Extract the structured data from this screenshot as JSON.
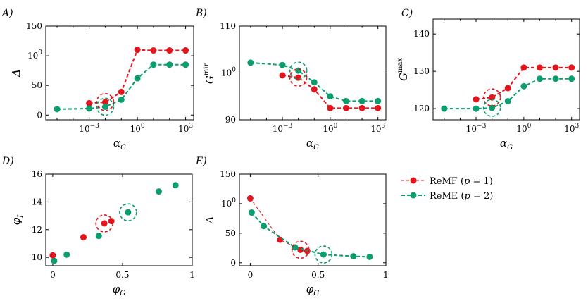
{
  "colors": {
    "remf": "#e3141b",
    "reme": "#0c9d6e"
  },
  "legend": [
    {
      "label": "ReMF (p = 1)",
      "color": "#e3141b",
      "style": "thin-dash"
    },
    {
      "label": "ReME (p = 2)",
      "color": "#0c9d6e",
      "style": "thick-dash"
    }
  ],
  "chart_data": [
    {
      "panel": "A)",
      "type": "line",
      "xlabel": "αG",
      "ylabel": "Δ",
      "xscale": "log",
      "xlim": [
        -5.7,
        3.5
      ],
      "ylim": [
        -8,
        150
      ],
      "xticks": [
        {
          "v": -3,
          "label": "10⁻³"
        },
        {
          "v": 0,
          "label": "10⁰"
        },
        {
          "v": 3,
          "label": "10³"
        }
      ],
      "yticks": [
        {
          "v": 0,
          "label": "0"
        },
        {
          "v": 50,
          "label": "50"
        },
        {
          "v": 100,
          "label": "100"
        },
        {
          "v": 150,
          "label": "150"
        }
      ],
      "series": [
        {
          "key": "remf",
          "x": [
            -3,
            -2,
            -1,
            0,
            1,
            2,
            3
          ],
          "y": [
            20,
            22,
            39,
            110,
            109,
            109,
            109
          ]
        },
        {
          "key": "reme",
          "x": [
            -5,
            -3,
            -2,
            -1,
            0,
            1,
            2,
            3
          ],
          "y": [
            10,
            11,
            14,
            26,
            62,
            85,
            85,
            85
          ]
        }
      ],
      "highlights": [
        {
          "key": "remf",
          "x": -2,
          "y": 22
        },
        {
          "key": "reme",
          "x": -2,
          "y": 14
        }
      ]
    },
    {
      "panel": "B)",
      "type": "line",
      "xlabel": "αG",
      "ylabel": "Gmin",
      "xscale": "log",
      "xlim": [
        -5.7,
        3.5
      ],
      "ylim": [
        90,
        110
      ],
      "xticks": [
        {
          "v": -3,
          "label": "10⁻³"
        },
        {
          "v": 0,
          "label": "10⁰"
        },
        {
          "v": 3,
          "label": "10³"
        }
      ],
      "yticks": [
        {
          "v": 90,
          "label": "90"
        },
        {
          "v": 100,
          "label": "100"
        },
        {
          "v": 110,
          "label": "110"
        }
      ],
      "series": [
        {
          "key": "remf",
          "x": [
            -3,
            -2,
            -1,
            0,
            1,
            2,
            3
          ],
          "y": [
            99.5,
            99,
            96.5,
            92.5,
            92.5,
            92.5,
            92.5
          ]
        },
        {
          "key": "reme",
          "x": [
            -5,
            -3,
            -2,
            -1,
            0,
            1,
            2,
            3
          ],
          "y": [
            102.2,
            101.7,
            100.5,
            98,
            95,
            94,
            94,
            94
          ]
        }
      ],
      "highlights": [
        {
          "key": "remf",
          "x": -2,
          "y": 99
        },
        {
          "key": "reme",
          "x": -2,
          "y": 100.5
        }
      ]
    },
    {
      "panel": "C)",
      "type": "line",
      "xlabel": "αG",
      "ylabel": "Gmax",
      "xscale": "log",
      "xlim": [
        -5.7,
        3.5
      ],
      "ylim": [
        117,
        144
      ],
      "xticks": [
        {
          "v": -3,
          "label": "10⁻³"
        },
        {
          "v": 0,
          "label": "10⁰"
        },
        {
          "v": 3,
          "label": "10³"
        }
      ],
      "yticks": [
        {
          "v": 120,
          "label": "120"
        },
        {
          "v": 130,
          "label": "130"
        },
        {
          "v": 140,
          "label": "140"
        }
      ],
      "series": [
        {
          "key": "remf",
          "x": [
            -3,
            -2,
            -1,
            0,
            1,
            2,
            3
          ],
          "y": [
            122.5,
            123,
            125.5,
            131,
            131,
            131,
            131
          ]
        },
        {
          "key": "reme",
          "x": [
            -5,
            -3,
            -2,
            -1,
            0,
            1,
            2,
            3
          ],
          "y": [
            120,
            120,
            120.2,
            122,
            126,
            128,
            128,
            128
          ]
        }
      ],
      "highlights": [
        {
          "key": "remf",
          "x": -2,
          "y": 123
        },
        {
          "key": "reme",
          "x": -2,
          "y": 120.2
        }
      ]
    },
    {
      "panel": "D)",
      "type": "scatter",
      "xlabel": "φG",
      "ylabel": "φI",
      "xscale": "linear",
      "xlim": [
        -0.05,
        1
      ],
      "ylim": [
        9.4,
        16
      ],
      "xticks": [
        {
          "v": 0,
          "label": "0"
        },
        {
          "v": 0.5,
          "label": "0.5"
        },
        {
          "v": 1,
          "label": "1"
        }
      ],
      "yticks": [
        {
          "v": 10,
          "label": "10"
        },
        {
          "v": 12,
          "label": "12"
        },
        {
          "v": 14,
          "label": "14"
        },
        {
          "v": 16,
          "label": "16"
        }
      ],
      "series": [
        {
          "key": "remf",
          "x": [
            0,
            0.22,
            0.37,
            0.42
          ],
          "y": [
            10.15,
            11.45,
            12.45,
            12.62
          ]
        },
        {
          "key": "reme",
          "x": [
            0.01,
            0.1,
            0.33,
            0.54,
            0.76,
            0.88
          ],
          "y": [
            9.75,
            10.2,
            11.55,
            13.25,
            14.75,
            15.2
          ]
        }
      ],
      "highlights": [
        {
          "key": "remf",
          "x": 0.37,
          "y": 12.45
        },
        {
          "key": "reme",
          "x": 0.54,
          "y": 13.25
        }
      ]
    },
    {
      "panel": "E)",
      "type": "line",
      "xlabel": "φG",
      "ylabel": "Δ",
      "xscale": "linear",
      "xlim": [
        -0.08,
        1
      ],
      "ylim": [
        -5,
        150
      ],
      "xticks": [
        {
          "v": 0,
          "label": "0"
        },
        {
          "v": 0.5,
          "label": "0.5"
        },
        {
          "v": 1,
          "label": "1"
        }
      ],
      "yticks": [
        {
          "v": 0,
          "label": "0"
        },
        {
          "v": 50,
          "label": "50"
        },
        {
          "v": 100,
          "label": "100"
        },
        {
          "v": 150,
          "label": "150"
        }
      ],
      "series": [
        {
          "key": "remf",
          "x": [
            0,
            0.22,
            0.37,
            0.42
          ],
          "y": [
            109,
            39,
            22,
            20
          ]
        },
        {
          "key": "reme",
          "x": [
            0.01,
            0.1,
            0.33,
            0.54,
            0.76,
            0.88
          ],
          "y": [
            85,
            62,
            26,
            14,
            11,
            10
          ]
        }
      ],
      "highlights": [
        {
          "key": "remf",
          "x": 0.37,
          "y": 22
        },
        {
          "key": "reme",
          "x": 0.54,
          "y": 14
        }
      ]
    }
  ]
}
